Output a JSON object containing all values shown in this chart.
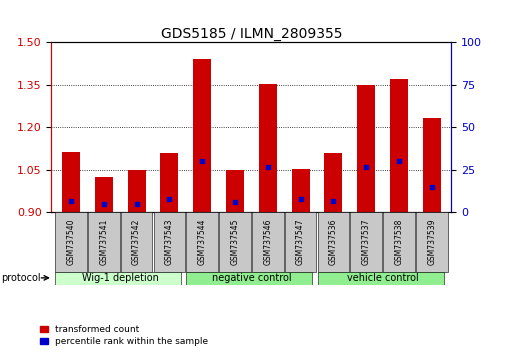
{
  "title": "GDS5185 / ILMN_2809355",
  "samples": [
    "GSM737540",
    "GSM737541",
    "GSM737542",
    "GSM737543",
    "GSM737544",
    "GSM737545",
    "GSM737546",
    "GSM737547",
    "GSM737536",
    "GSM737537",
    "GSM737538",
    "GSM737539"
  ],
  "transformed_count": [
    1.115,
    1.025,
    1.05,
    1.11,
    1.44,
    1.05,
    1.355,
    1.055,
    1.11,
    1.35,
    1.37,
    1.235
  ],
  "percentile_rank": [
    7,
    5,
    5,
    8,
    30,
    6,
    27,
    8,
    7,
    27,
    30,
    15
  ],
  "groups": [
    {
      "label": "Wig-1 depletion",
      "start": 0,
      "end": 4
    },
    {
      "label": "negative control",
      "start": 4,
      "end": 8
    },
    {
      "label": "vehicle control",
      "start": 8,
      "end": 12
    }
  ],
  "group_colors": [
    "#ccffcc",
    "#90ee90",
    "#90ee90"
  ],
  "ylim_left": [
    0.9,
    1.5
  ],
  "ylim_right": [
    0,
    100
  ],
  "yticks_left": [
    0.9,
    1.05,
    1.2,
    1.35,
    1.5
  ],
  "yticks_right": [
    0,
    25,
    50,
    75,
    100
  ],
  "bar_color": "#cc0000",
  "marker_color": "#0000cc",
  "bar_width": 0.55,
  "background_color": "#ffffff",
  "tick_label_color_left": "#cc0000",
  "tick_label_color_right": "#0000cc",
  "xlabel_area_color": "#c8c8c8",
  "title_fontsize": 10,
  "tick_fontsize": 8,
  "sample_fontsize": 5.5,
  "group_fontsize": 7,
  "legend_fontsize": 6.5
}
